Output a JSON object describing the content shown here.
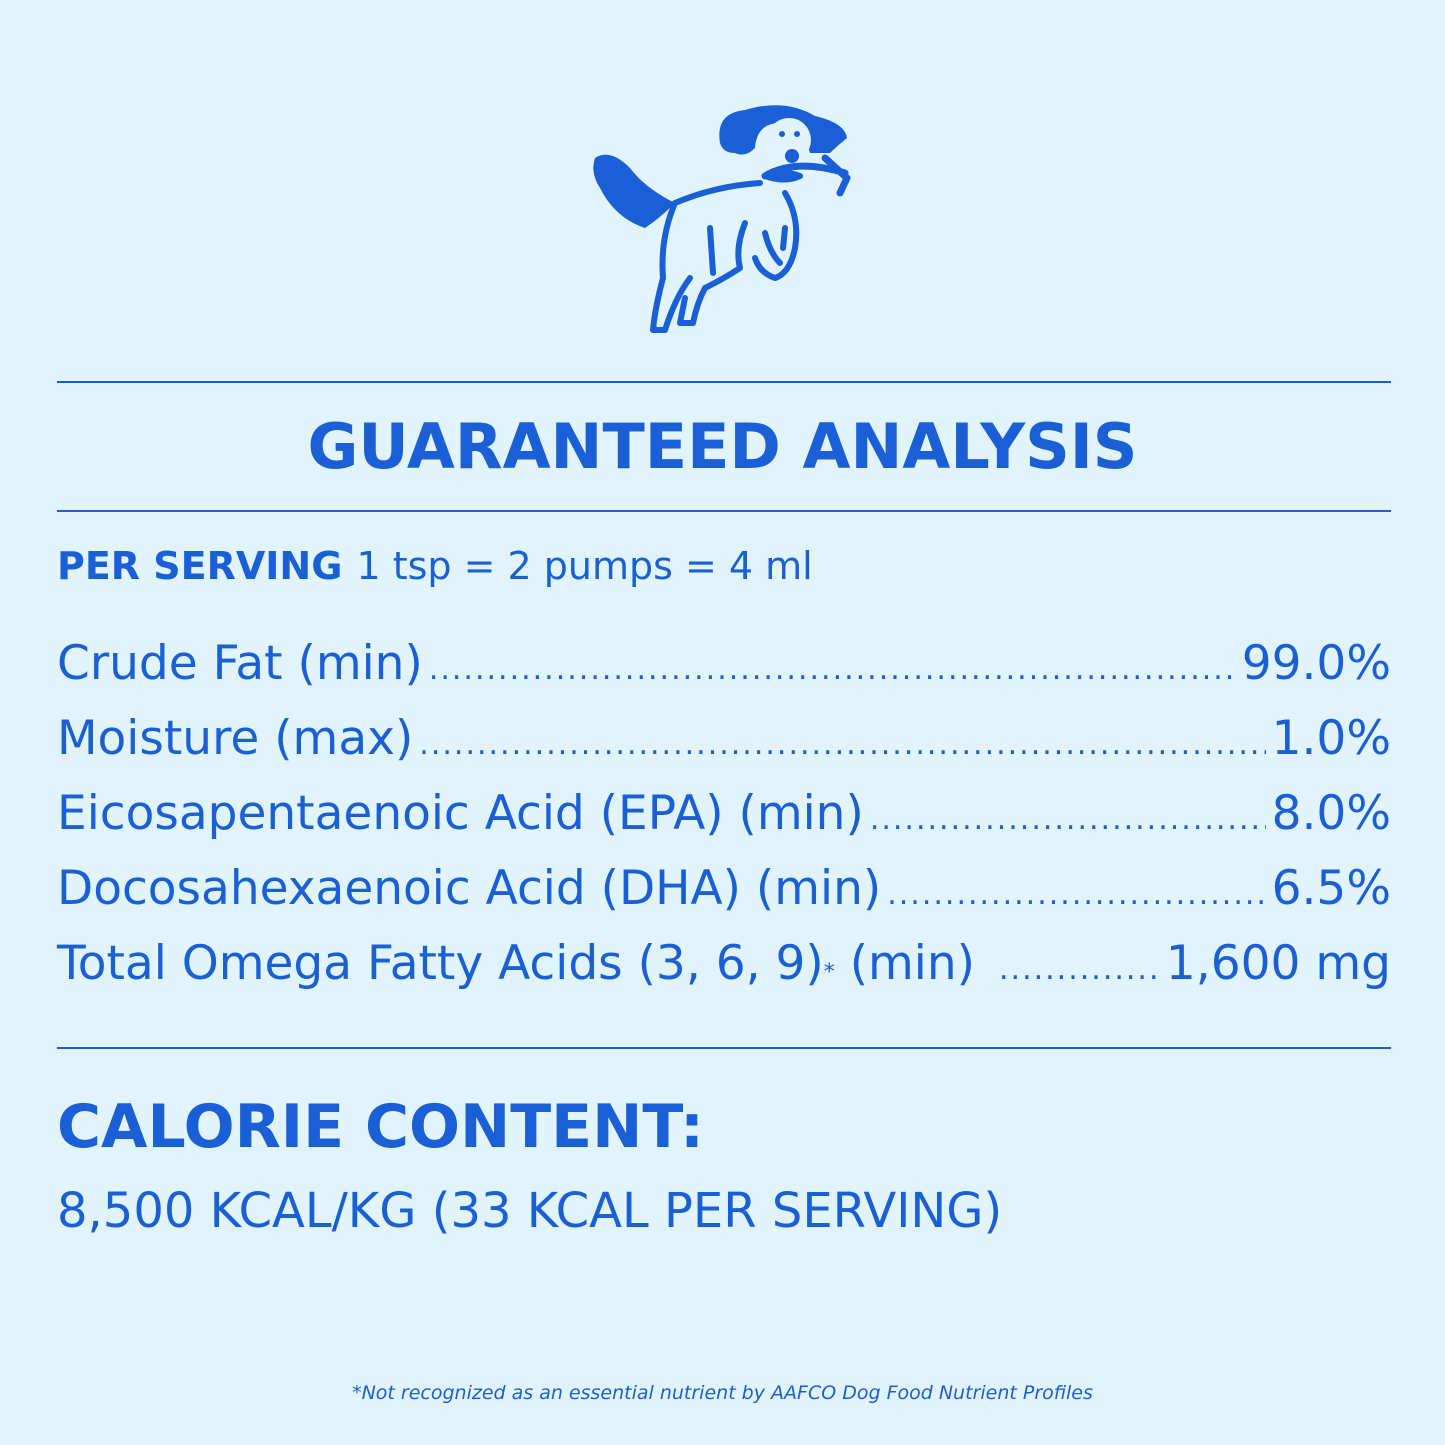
{
  "colors": {
    "background": "#e1f4fb",
    "accent": "#1a5fd6"
  },
  "logo": {
    "icon": "dog-with-fish-illustration"
  },
  "title": "GUARANTEED ANALYSIS",
  "serving": {
    "label": "PER SERVING",
    "value": "1 tsp = 2 pumps = 4 ml"
  },
  "rows": [
    {
      "name": "Crude Fat (min)",
      "value": "99.0%"
    },
    {
      "name": "Moisture (max)",
      "value": "1.0%"
    },
    {
      "name": "Eicosapentaenoic Acid (EPA) (min)",
      "value": "8.0%"
    },
    {
      "name": "Docosahexaenoic Acid (DHA) (min)",
      "value": "6.5%"
    },
    {
      "name": "Total Omega Fatty Acids (3, 6, 9)",
      "footnote_mark": "*",
      "suffix": "(min)",
      "value": "1,600 mg"
    }
  ],
  "calorie": {
    "heading": "CALORIE CONTENT:",
    "value": "8,500 KCAL/KG (33 KCAL PER SERVING)"
  },
  "footnote": "*Not recognized as an essential nutrient by AAFCO Dog Food Nutrient Profiles"
}
